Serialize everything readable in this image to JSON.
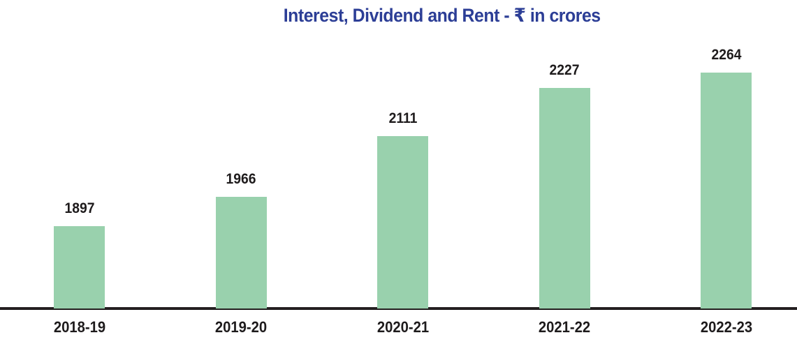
{
  "chart_data": {
    "type": "bar",
    "title": "Interest, Dividend and Rent - ₹ in crores",
    "categories": [
      "2018-19",
      "2019-20",
      "2020-21",
      "2021-22",
      "2022-23"
    ],
    "values": [
      1897,
      1966,
      2111,
      2227,
      2264
    ],
    "xlabel": "",
    "ylabel": "",
    "ylim": [
      1700,
      2300
    ],
    "grid": false,
    "legend": false,
    "data_labels": true,
    "bar_color": "#99d1ad",
    "title_color": "#2c3e96",
    "label_color": "#1e1b1c",
    "axis_line_color": "#231f20",
    "background_color": "#ffffff"
  }
}
